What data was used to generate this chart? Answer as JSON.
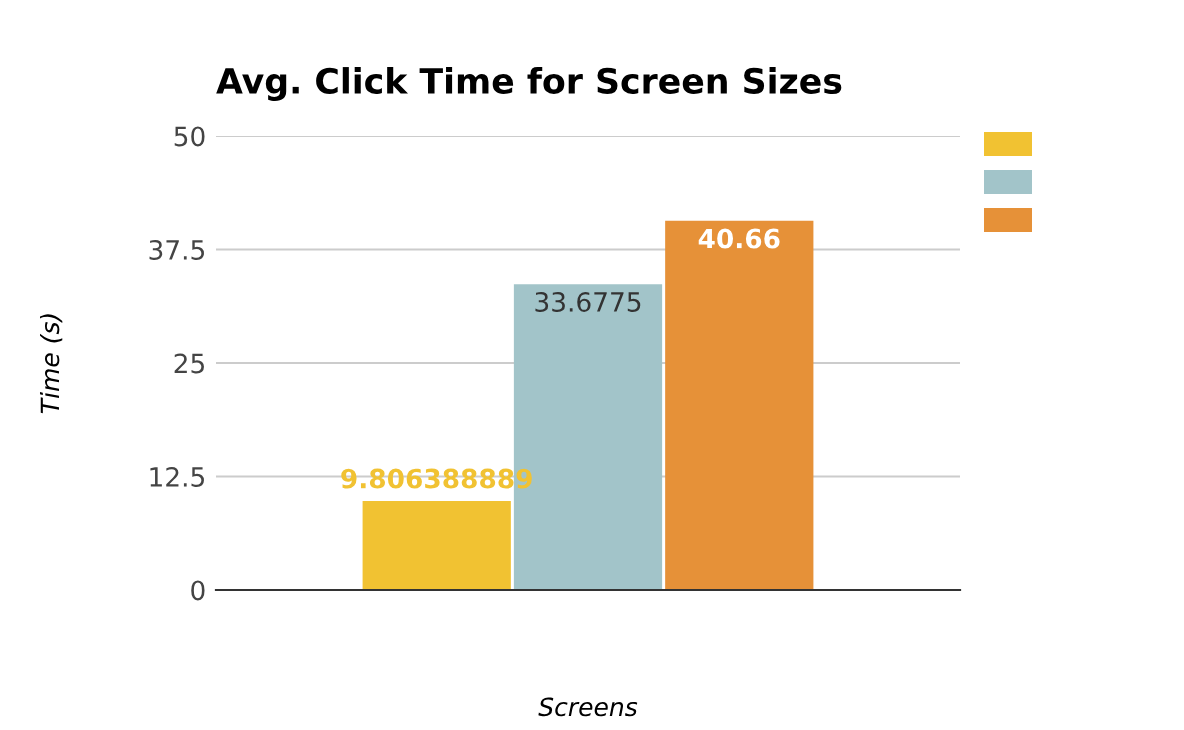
{
  "chart_data": {
    "type": "bar",
    "title": "Avg. Click Time for Screen Sizes",
    "xlabel": "Screens",
    "ylabel": "Time (s)",
    "categories": [
      null
    ],
    "series": [
      {
        "color": "#f1c232",
        "values": [
          9.806388889
        ]
      },
      {
        "color": "#a2c4c9",
        "values": [
          33.6775
        ]
      },
      {
        "color": "#e69138",
        "values": [
          40.66
        ]
      }
    ],
    "ylim": [
      0,
      50
    ],
    "yticks": [
      0,
      12.5,
      25,
      37.5,
      50
    ],
    "grid": "y",
    "data_labels": true
  }
}
